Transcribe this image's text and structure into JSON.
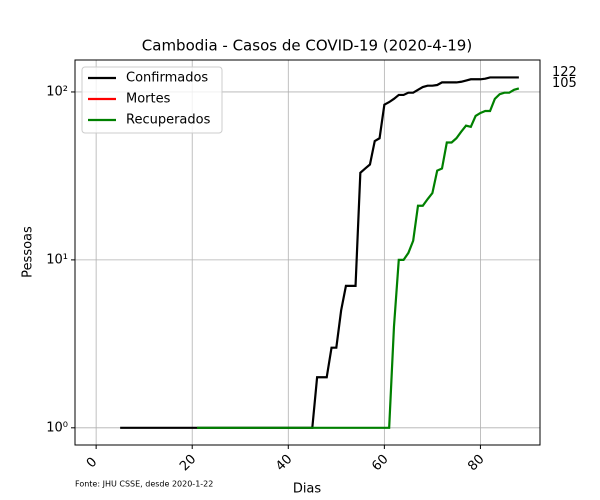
{
  "chart_data": {
    "type": "line",
    "title": "Cambodia - Casos de COVID-19 (2020-4-19)",
    "x_label": "Dias",
    "y_label": "Pessoas",
    "source": "Fonte: JHU CSSE, desde 2020-1-22",
    "log_y": true,
    "grid": true,
    "legend": "upper left",
    "xlim": [
      -4.4,
      92.4
    ],
    "xticks": [
      0,
      20,
      40,
      60,
      80
    ],
    "ylim": [
      0.79,
      155
    ],
    "yticks": [
      {
        "value": 1,
        "label": "10⁰"
      },
      {
        "value": 10,
        "label": "10¹"
      },
      {
        "value": 100,
        "label": "10²"
      }
    ],
    "x": [
      0,
      1,
      2,
      3,
      4,
      5,
      6,
      7,
      8,
      9,
      10,
      11,
      12,
      13,
      14,
      15,
      16,
      17,
      18,
      19,
      20,
      21,
      22,
      23,
      24,
      25,
      26,
      27,
      28,
      29,
      30,
      31,
      32,
      33,
      34,
      35,
      36,
      37,
      38,
      39,
      40,
      41,
      42,
      43,
      44,
      45,
      46,
      47,
      48,
      49,
      50,
      51,
      52,
      53,
      54,
      55,
      56,
      57,
      58,
      59,
      60,
      61,
      62,
      63,
      64,
      65,
      66,
      67,
      68,
      69,
      70,
      71,
      72,
      73,
      74,
      75,
      76,
      77,
      78,
      79,
      80,
      81,
      82,
      83,
      84,
      85,
      86,
      87,
      88
    ],
    "series": [
      {
        "name": "Confirmados",
        "color": "#000000",
        "values": [
          null,
          null,
          null,
          null,
          null,
          1,
          1,
          1,
          1,
          1,
          1,
          1,
          1,
          1,
          1,
          1,
          1,
          1,
          1,
          1,
          1,
          1,
          1,
          1,
          1,
          1,
          1,
          1,
          1,
          1,
          1,
          1,
          1,
          1,
          1,
          1,
          1,
          1,
          1,
          1,
          1,
          1,
          1,
          1,
          1,
          1,
          2,
          2,
          2,
          3,
          3,
          5,
          7,
          7,
          7,
          33,
          35,
          37,
          51,
          53,
          84,
          87,
          91,
          96,
          96,
          99,
          99,
          103,
          107,
          109,
          109,
          110,
          114,
          114,
          114,
          114,
          115,
          117,
          119,
          119,
          119,
          120,
          122,
          122,
          122,
          122,
          122,
          122,
          122
        ]
      },
      {
        "name": "Mortes",
        "color": "#ff0000",
        "values": [
          null,
          null,
          null,
          null,
          null,
          null,
          null,
          null,
          null,
          null,
          null,
          null,
          null,
          null,
          null,
          null,
          null,
          null,
          null,
          null,
          null,
          null,
          null,
          null,
          null,
          null,
          null,
          null,
          null,
          null,
          null,
          null,
          null,
          null,
          null,
          null,
          null,
          null,
          null,
          null,
          null,
          null,
          null,
          null,
          null,
          null,
          null,
          null,
          null,
          null,
          null,
          null,
          null,
          null,
          null,
          null,
          null,
          null,
          null,
          null,
          null,
          null,
          null,
          null,
          null,
          null,
          null,
          null,
          null,
          null,
          null,
          null,
          null,
          null,
          null,
          null,
          null,
          null,
          null,
          null,
          null,
          null,
          null,
          null,
          null,
          null,
          null,
          null,
          null
        ]
      },
      {
        "name": "Recuperados",
        "color": "#008000",
        "values": [
          null,
          null,
          null,
          null,
          null,
          null,
          null,
          null,
          null,
          null,
          null,
          null,
          null,
          null,
          null,
          null,
          null,
          null,
          null,
          null,
          null,
          1,
          1,
          1,
          1,
          1,
          1,
          1,
          1,
          1,
          1,
          1,
          1,
          1,
          1,
          1,
          1,
          1,
          1,
          1,
          1,
          1,
          1,
          1,
          1,
          1,
          1,
          1,
          1,
          1,
          1,
          1,
          1,
          1,
          1,
          1,
          1,
          1,
          1,
          1,
          1,
          1,
          4,
          10,
          10,
          11,
          13,
          21,
          21,
          23,
          25,
          34,
          35,
          50,
          50,
          53,
          58,
          63,
          62,
          72,
          75,
          77,
          77,
          91,
          97,
          99,
          99,
          103,
          105
        ]
      }
    ]
  }
}
